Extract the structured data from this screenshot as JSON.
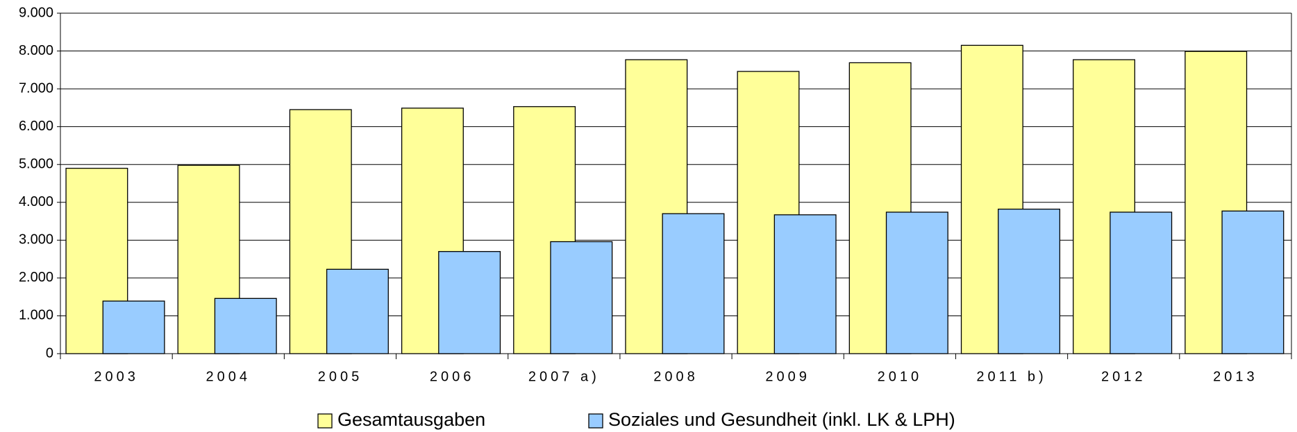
{
  "chart_data": {
    "type": "bar",
    "categories": [
      "2003",
      "2004",
      "2005",
      "2006",
      "2007 a)",
      "2008",
      "2009",
      "2010",
      "2011 b)",
      "2012",
      "2013"
    ],
    "series": [
      {
        "name": "Gesamtausgaben",
        "color": "#ffff99",
        "values": [
          4900,
          4980,
          6450,
          6490,
          6530,
          7770,
          7460,
          7690,
          8150,
          7770,
          7990
        ]
      },
      {
        "name": "Soziales und Gesundheit (inkl. LK & LPH)",
        "color": "#99ccff",
        "values": [
          1390,
          1460,
          2230,
          2700,
          2960,
          3700,
          3670,
          3740,
          3820,
          3740,
          3770
        ]
      }
    ],
    "ylim": [
      0,
      9000
    ],
    "yticks": [
      0,
      {
        "value": 1000,
        "label": "1.000"
      },
      {
        "value": 2000,
        "label": "2.000"
      },
      {
        "value": 3000,
        "label": "3.000"
      },
      {
        "value": 4000,
        "label": "4.000"
      },
      {
        "value": 5000,
        "label": "5.000"
      },
      {
        "value": 6000,
        "label": "6.000"
      },
      {
        "value": 7000,
        "label": "7.000"
      },
      {
        "value": 8000,
        "label": "8.000"
      },
      {
        "value": 9000,
        "label": "9.000"
      }
    ],
    "grid": true,
    "legend": "bottom"
  }
}
